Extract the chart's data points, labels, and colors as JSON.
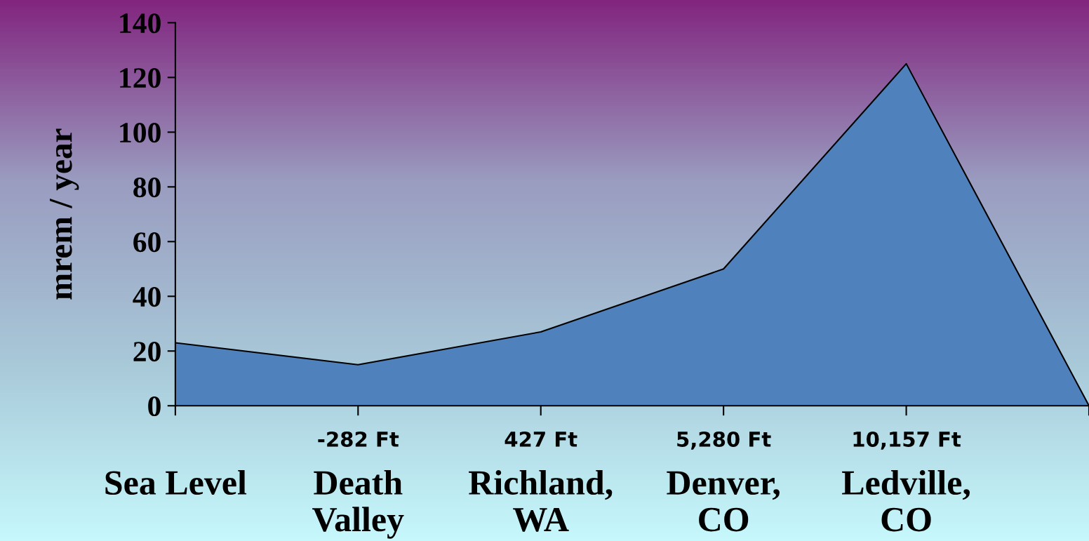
{
  "chart_data": {
    "type": "area",
    "ylabel": "mrem / year",
    "categories": [
      "Sea Level",
      "Death\nValley",
      "Richland,\nWA",
      "Denver,\nCO",
      "Ledville,\nCO",
      null
    ],
    "values": [
      23,
      15,
      27,
      50,
      125,
      0
    ],
    "color": "#4f81bd",
    "ylim": [
      0,
      140
    ],
    "yticks": [
      0,
      20,
      40,
      60,
      80,
      100,
      120,
      140
    ],
    "grid": false,
    "legend": false,
    "annotations": [
      "-282 Ft",
      "427 Ft",
      "5,280 Ft",
      "10,157 Ft"
    ]
  }
}
